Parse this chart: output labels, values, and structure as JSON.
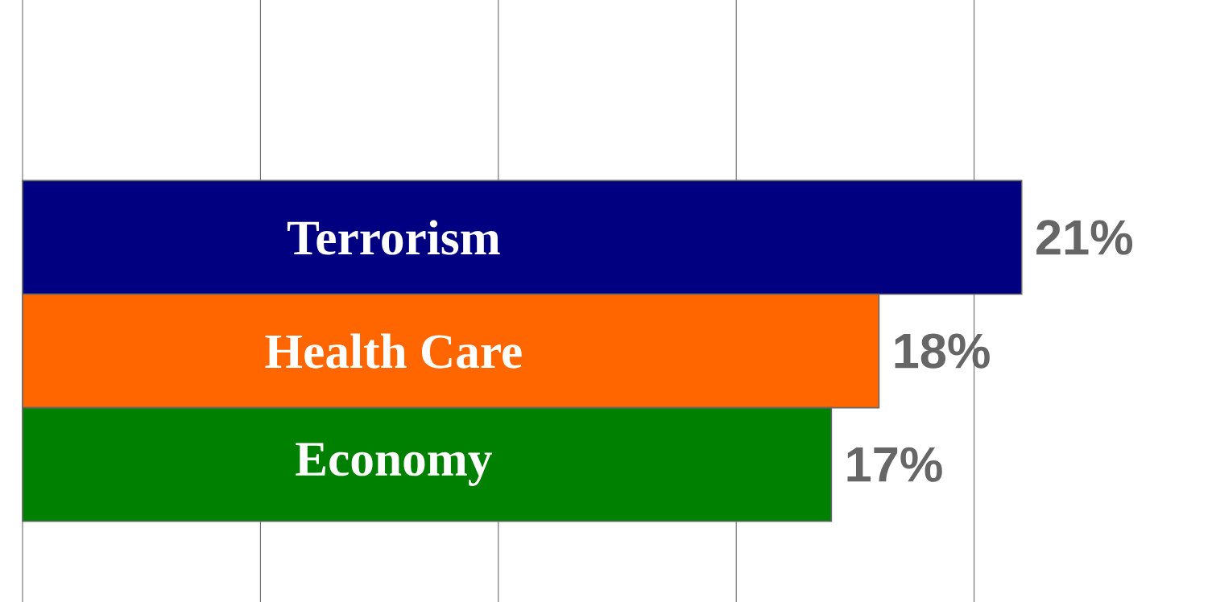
{
  "chart_data": {
    "type": "bar",
    "orientation": "horizontal",
    "categories": [
      "Terrorism",
      "Health Care",
      "Economy"
    ],
    "values": [
      21,
      18,
      17
    ],
    "colors": [
      "#000080",
      "#ff6600",
      "#008000"
    ],
    "value_labels": [
      "21%",
      "18%",
      "17%"
    ],
    "xticks": [
      {
        "value": 0,
        "label": null
      },
      {
        "value": 5,
        "label": null
      },
      {
        "value": 10,
        "label": null
      },
      {
        "value": 15,
        "label": null
      },
      {
        "value": 20,
        "label": null
      }
    ],
    "grid": "x"
  }
}
